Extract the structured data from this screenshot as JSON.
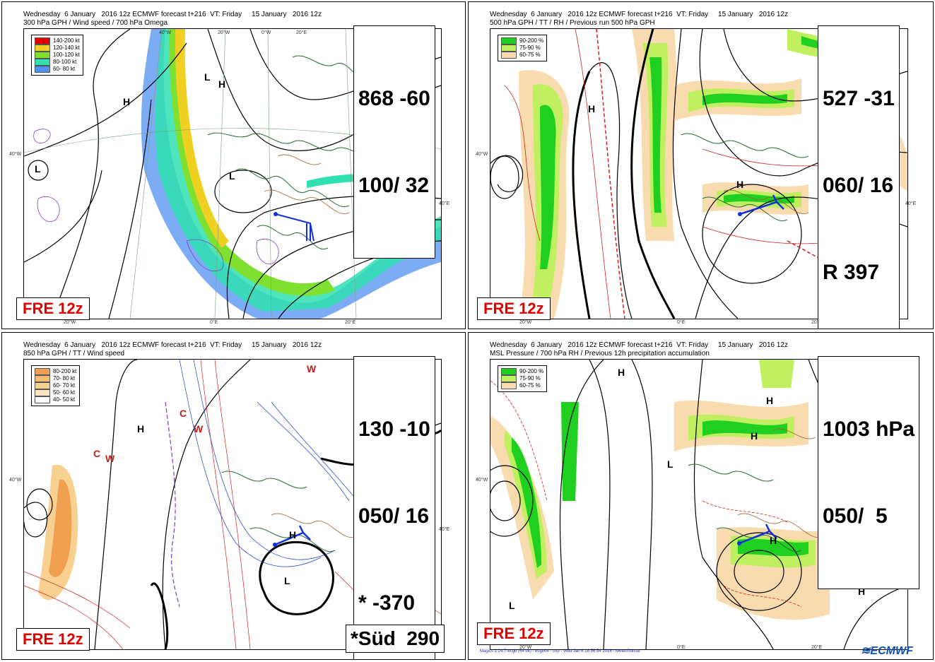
{
  "panels": [
    {
      "title_line1": "Wednesday  6 January   2016 12z ECMWF forecast t+216  VT: Friday     15 January   2016 12z",
      "title_line2": "300 hPa GPH / Wind speed / 700 hPa Omega",
      "legend": [
        {
          "label": "140-200 kt",
          "color": "#e00000"
        },
        {
          "label": "120-140 kt",
          "color": "#f0d020"
        },
        {
          "label": "100-120 kt",
          "color": "#80e030"
        },
        {
          "label": "80-100 kt",
          "color": "#30e0b0"
        },
        {
          "label": "60- 80 kt",
          "color": "#5090f0"
        }
      ],
      "info": [
        "868 -60",
        "100/ 32"
      ],
      "run_label": "FRE 12z"
    },
    {
      "title_line1": "Wednesday  6 January   2016 12z ECMWF forecast t+216  VT: Friday     15 January   2016 12z",
      "title_line2": "500 hPa GPH / TT / RH / Previous run 500 hPa GPH",
      "legend": [
        {
          "label": "90-200 %",
          "color": "#20d020"
        },
        {
          "label": "75-90 %",
          "color": "#c0f060"
        },
        {
          "label": "60-75 %",
          "color": "#f8dcb0"
        }
      ],
      "info": [
        "527 -31",
        "060/ 16",
        "R 397"
      ],
      "run_label": "FRE 12z"
    },
    {
      "title_line1": "Wednesday  6 January   2016 12z ECMWF forecast t+216  VT: Friday     15 January   2016 12z",
      "title_line2": "850 hPa GPH / TT / Wind speed",
      "legend": [
        {
          "label": "80-200 kt",
          "color": "#f0a050"
        },
        {
          "label": "70- 80 kt",
          "color": "#f5bb70"
        },
        {
          "label": "60- 70 kt",
          "color": "#f8d090"
        },
        {
          "label": "50- 60 kt",
          "color": "#fbe4c0"
        },
        {
          "label": "40- 50 kt",
          "color": "#ffffff"
        }
      ],
      "info": [
        "130 -10",
        "050/ 16",
        "* -370"
      ],
      "info2": "*Süd  290",
      "run_label": "FRE 12z"
    },
    {
      "title_line1": "Wednesday  6 January   2016 12z ECMWF forecast t+216  VT: Friday     15 January   2016 12z",
      "title_line2": "MSL Pressure / 700 hPa RH / Previous 12h precipitation accumulation",
      "legend": [
        {
          "label": "90-200 %",
          "color": "#20d020"
        },
        {
          "label": "75-90 %",
          "color": "#c0f060"
        },
        {
          "label": "60-75 %",
          "color": "#f8dcb0"
        }
      ],
      "info": [
        "1003 hPa",
        "050/  5"
      ],
      "run_label": "FRE 12z",
      "footer": "Magics 2.24.7-ecgb (64 bit) - ecgb04 - chp - Wed Jan  6 18:56:54 2016 - MeteoSuisse",
      "logo": "ECMWF"
    }
  ],
  "coords": {
    "w40": "40°W",
    "w20": "20°W",
    "zero": "0°E",
    "e20": "20°E",
    "e40": "40°E",
    "w0": "0°W"
  },
  "symbols": {
    "high": "H",
    "low": "L",
    "cold": "C",
    "warm": "W"
  }
}
